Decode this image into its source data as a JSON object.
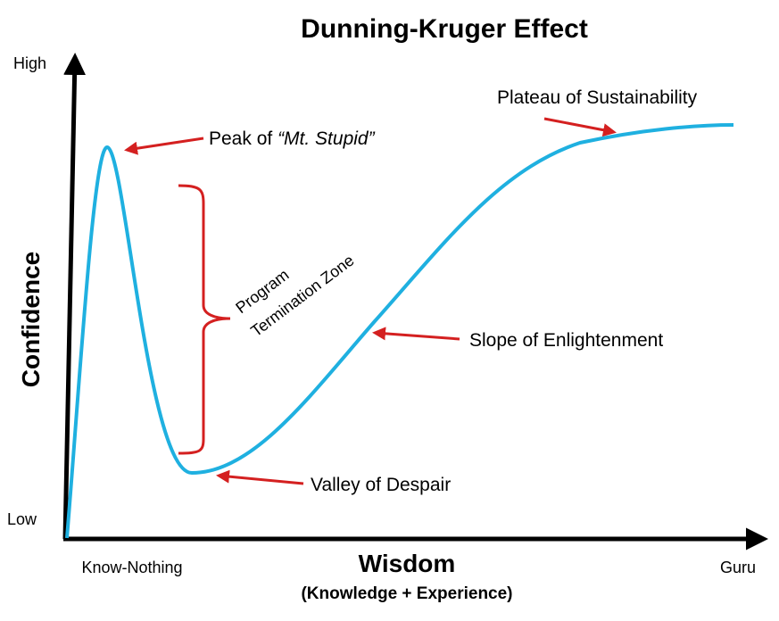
{
  "title": "Dunning-Kruger Effect",
  "y_axis": {
    "label": "Confidence",
    "high": "High",
    "low": "Low"
  },
  "x_axis": {
    "label": "Wisdom",
    "sublabel": "(Knowledge + Experience)",
    "start": "Know-Nothing",
    "end": "Guru"
  },
  "annotations": {
    "peak": {
      "text": "Peak of ",
      "emphasis": "“Mt. Stupid”"
    },
    "plateau": "Plateau of Sustainability",
    "slope": "Slope of Enlightenment",
    "valley": "Valley of Despair",
    "zone": [
      "Program",
      "Termination Zone"
    ]
  }
}
